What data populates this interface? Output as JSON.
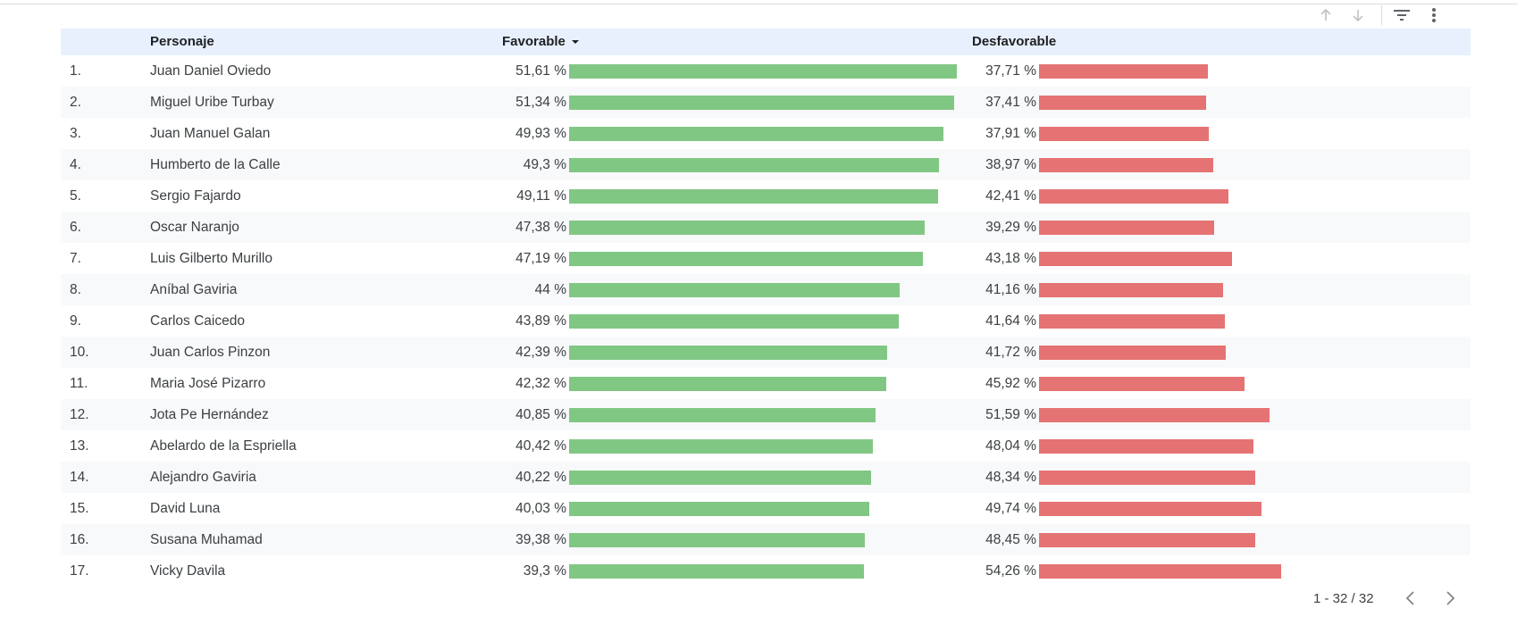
{
  "header": {
    "col_character": "Personaje",
    "col_favorable": "Favorable",
    "col_unfavorable": "Desfavorable"
  },
  "toolbar": {
    "sort_up_icon": "arrow-up-icon",
    "sort_down_icon": "arrow-down-icon",
    "filter_icon": "filter-icon",
    "more_icon": "more-vert-icon"
  },
  "colors": {
    "favorable_bar": "#81c784",
    "unfavorable_bar": "#e57373",
    "header_bg": "#e8f0fe"
  },
  "rows": [
    {
      "index": "1.",
      "name": "Juan Daniel Oviedo",
      "favorable": "51,61 %",
      "fav_value": 51.61,
      "unfavorable": "37,71 %",
      "unf_value": 37.71
    },
    {
      "index": "2.",
      "name": "Miguel Uribe Turbay",
      "favorable": "51,34 %",
      "fav_value": 51.34,
      "unfavorable": "37,41 %",
      "unf_value": 37.41
    },
    {
      "index": "3.",
      "name": "Juan Manuel Galan",
      "favorable": "49,93 %",
      "fav_value": 49.93,
      "unfavorable": "37,91 %",
      "unf_value": 37.91
    },
    {
      "index": "4.",
      "name": "Humberto de la Calle",
      "favorable": "49,3 %",
      "fav_value": 49.3,
      "unfavorable": "38,97 %",
      "unf_value": 38.97
    },
    {
      "index": "5.",
      "name": "Sergio Fajardo",
      "favorable": "49,11 %",
      "fav_value": 49.11,
      "unfavorable": "42,41 %",
      "unf_value": 42.41
    },
    {
      "index": "6.",
      "name": "Oscar Naranjo",
      "favorable": "47,38 %",
      "fav_value": 47.38,
      "unfavorable": "39,29 %",
      "unf_value": 39.29
    },
    {
      "index": "7.",
      "name": "Luis Gilberto Murillo",
      "favorable": "47,19 %",
      "fav_value": 47.19,
      "unfavorable": "43,18 %",
      "unf_value": 43.18
    },
    {
      "index": "8.",
      "name": "Aníbal Gaviria",
      "favorable": "44 %",
      "fav_value": 44.0,
      "unfavorable": "41,16 %",
      "unf_value": 41.16
    },
    {
      "index": "9.",
      "name": "Carlos Caicedo",
      "favorable": "43,89 %",
      "fav_value": 43.89,
      "unfavorable": "41,64 %",
      "unf_value": 41.64
    },
    {
      "index": "10.",
      "name": "Juan Carlos Pinzon",
      "favorable": "42,39 %",
      "fav_value": 42.39,
      "unfavorable": "41,72 %",
      "unf_value": 41.72
    },
    {
      "index": "11.",
      "name": "Maria José Pizarro",
      "favorable": "42,32 %",
      "fav_value": 42.32,
      "unfavorable": "45,92 %",
      "unf_value": 45.92
    },
    {
      "index": "12.",
      "name": "Jota Pe Hernández",
      "favorable": "40,85 %",
      "fav_value": 40.85,
      "unfavorable": "51,59 %",
      "unf_value": 51.59
    },
    {
      "index": "13.",
      "name": "Abelardo de la Espriella",
      "favorable": "40,42 %",
      "fav_value": 40.42,
      "unfavorable": "48,04 %",
      "unf_value": 48.04
    },
    {
      "index": "14.",
      "name": "Alejandro Gaviria",
      "favorable": "40,22 %",
      "fav_value": 40.22,
      "unfavorable": "48,34 %",
      "unf_value": 48.34
    },
    {
      "index": "15.",
      "name": "David Luna",
      "favorable": "40,03 %",
      "fav_value": 40.03,
      "unfavorable": "49,74 %",
      "unf_value": 49.74
    },
    {
      "index": "16.",
      "name": "Susana Muhamad",
      "favorable": "39,38 %",
      "fav_value": 39.38,
      "unfavorable": "48,45 %",
      "unf_value": 48.45
    },
    {
      "index": "17.",
      "name": "Vicky Davila",
      "favorable": "39,3 %",
      "fav_value": 39.3,
      "unfavorable": "54,26 %",
      "unf_value": 54.26
    }
  ],
  "pager": {
    "range": "1 - 32 / 32",
    "prev_icon": "chevron-left-icon",
    "next_icon": "chevron-right-icon"
  }
}
